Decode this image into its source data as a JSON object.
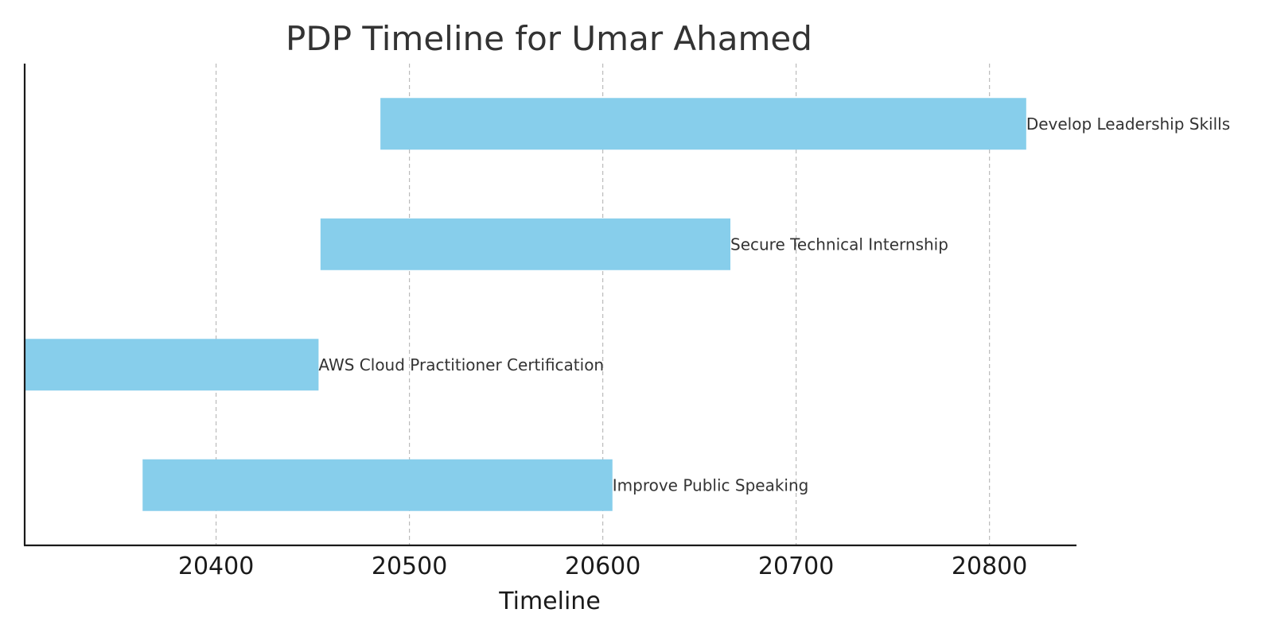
{
  "chart_data": {
    "type": "bar",
    "orientation": "horizontal",
    "title": "PDP Timeline for Umar Ahamed",
    "xlabel": "Timeline",
    "ylabel": "",
    "xlim": [
      20301,
      20845
    ],
    "xticks": [
      20400,
      20500,
      20600,
      20700,
      20800
    ],
    "tick_labels": [
      "20400",
      "20500",
      "20600",
      "20700",
      "20800"
    ],
    "grid": "vertical dashed",
    "bar_color": "#87CEEB",
    "tasks": [
      {
        "label": "Improve Public Speaking",
        "start": 20362,
        "end": 20605
      },
      {
        "label": "AWS Cloud Practitioner Certification",
        "start": 20301,
        "end": 20453
      },
      {
        "label": "Secure Technical Internship",
        "start": 20454,
        "end": 20666
      },
      {
        "label": "Develop Leadership Skills",
        "start": 20485,
        "end": 20819
      }
    ]
  }
}
